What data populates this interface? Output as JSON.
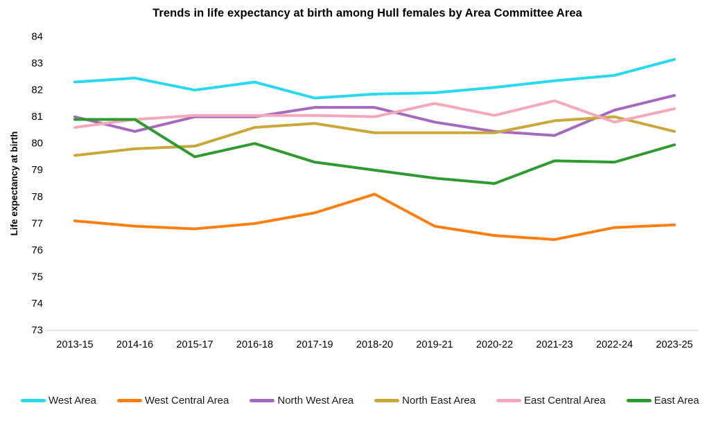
{
  "chart_data": {
    "type": "line",
    "title": "Trends in life expectancy at birth among Hull females by Area Committee Area",
    "xlabel": "",
    "ylabel": "Life expectancy at birth",
    "ylim": [
      73,
      84
    ],
    "ytick_step": 1,
    "grid": false,
    "legend_position": "bottom",
    "axis_color": "#d9d9d9",
    "text_color": "#000000",
    "categories": [
      "2013-15",
      "2014-16",
      "2015-17",
      "2016-18",
      "2017-19",
      "2018-20",
      "2019-21",
      "2020-22",
      "2021-23",
      "2022-24",
      "2023-25"
    ],
    "series": [
      {
        "name": "West Area",
        "color": "#29d9ee",
        "values": [
          82.3,
          82.45,
          82.0,
          82.3,
          81.7,
          81.85,
          81.9,
          82.1,
          82.35,
          82.55,
          83.15
        ]
      },
      {
        "name": "West Central Area",
        "color": "#ff7f0e",
        "values": [
          77.1,
          76.9,
          76.8,
          77.0,
          77.4,
          78.1,
          76.9,
          76.55,
          76.4,
          76.85,
          76.95
        ]
      },
      {
        "name": "North West Area",
        "color": "#a569bd",
        "values": [
          81.0,
          80.45,
          81.0,
          81.0,
          81.35,
          81.35,
          80.8,
          80.45,
          80.3,
          81.25,
          81.8
        ]
      },
      {
        "name": "North East Area",
        "color": "#c9a83a",
        "values": [
          79.55,
          79.8,
          79.9,
          80.6,
          80.75,
          80.4,
          80.4,
          80.4,
          80.85,
          81.0,
          80.45
        ]
      },
      {
        "name": "East Central Area",
        "color": "#f5a8b8",
        "values": [
          80.6,
          80.9,
          81.05,
          81.05,
          81.05,
          81.0,
          81.5,
          81.05,
          81.6,
          80.8,
          81.3
        ]
      },
      {
        "name": "East Area",
        "color": "#2e9b2e",
        "values": [
          80.9,
          80.9,
          79.5,
          80.0,
          79.3,
          79.0,
          78.7,
          78.5,
          79.35,
          79.3,
          79.95
        ]
      }
    ]
  }
}
